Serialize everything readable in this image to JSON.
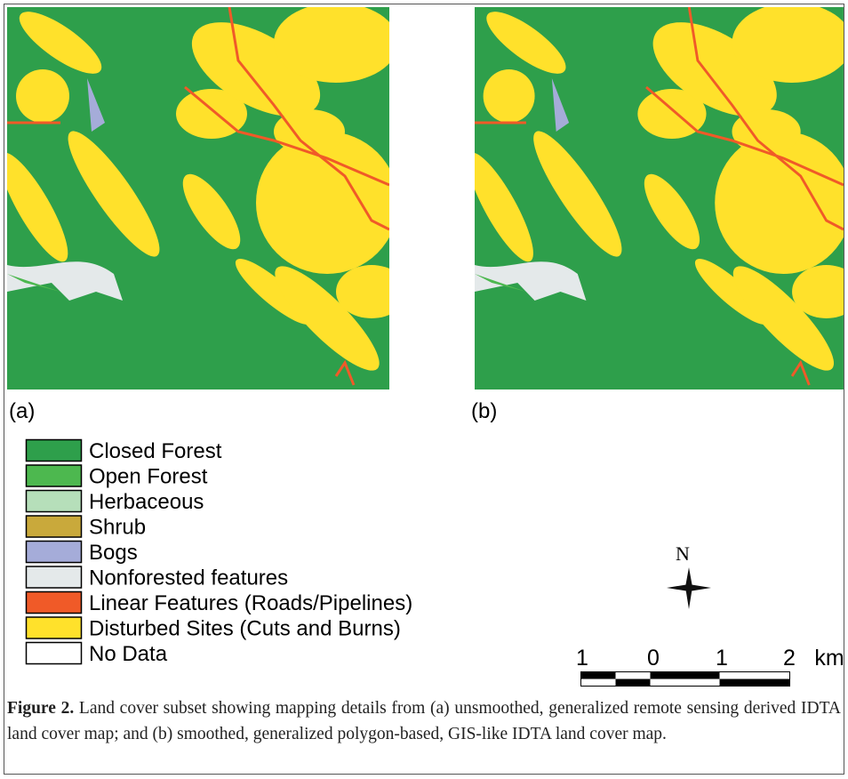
{
  "panels": [
    "(a)",
    "(b)"
  ],
  "legend": [
    {
      "name": "Closed Forest",
      "color": "#2e9f4b"
    },
    {
      "name": "Open Forest",
      "color": "#4db84f"
    },
    {
      "name": "Herbaceous",
      "color": "#b6dfba"
    },
    {
      "name": "Shrub",
      "color": "#c9a93b"
    },
    {
      "name": "Bogs",
      "color": "#a5acd9"
    },
    {
      "name": "Nonforested features",
      "color": "#e4e9ea"
    },
    {
      "name": "Linear Features (Roads/Pipelines)",
      "color": "#f05a28"
    },
    {
      "name": "Disturbed Sites (Cuts and Burns)",
      "color": "#ffe12b"
    },
    {
      "name": "No Data",
      "color": "#ffffff"
    }
  ],
  "north": "N",
  "scale": [
    "1",
    "0",
    "1",
    "2",
    "km"
  ],
  "caption": {
    "label": "Figure 2.",
    "text": "Land cover subset showing mapping details from (a) unsmoothed, generalized remote sensing derived IDTA land cover map; and (b) smoothed, generalized polygon-based, GIS-like IDTA land cover map."
  }
}
